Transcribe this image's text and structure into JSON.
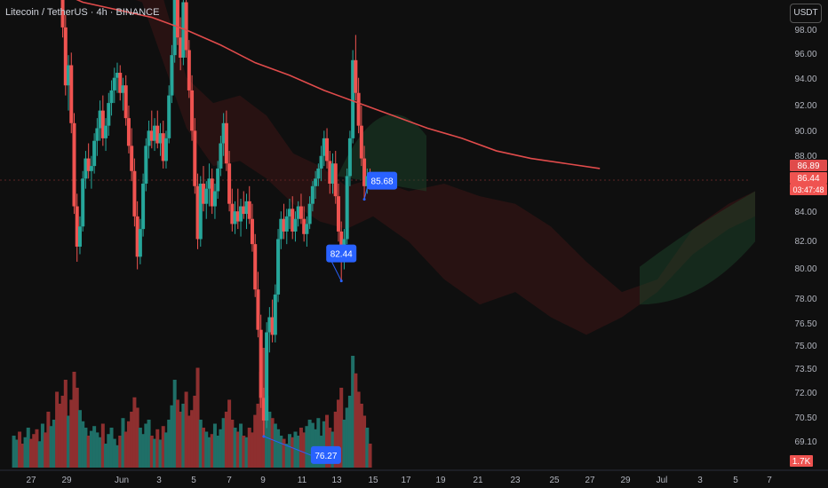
{
  "header": {
    "title": "Litecoin / TetherUS · 4h · BINANCE",
    "currency_button": "USDT"
  },
  "colors": {
    "up": "#26a69a",
    "down": "#ef5350",
    "ma": "#e04b4b",
    "label": "#2962ff",
    "bg": "#0f0f0f"
  },
  "chart_data": {
    "type": "candlestick",
    "price_axis": {
      "ticks": [
        "98.00",
        "96.00",
        "94.00",
        "92.00",
        "90.00",
        "88.00",
        "84.00",
        "82.00",
        "80.00",
        "78.00",
        "76.50",
        "75.00",
        "73.50",
        "72.00",
        "70.50",
        "69.10"
      ]
    },
    "x_axis": {
      "ticks": [
        "27",
        "29",
        "Jun",
        "3",
        "5",
        "7",
        "9",
        "11",
        "13",
        "15",
        "17",
        "19",
        "21",
        "23",
        "25",
        "27",
        "29",
        "Jul",
        "3",
        "5",
        "7"
      ]
    },
    "price_badges": [
      {
        "value": "86.89",
        "color": "#e04b4b"
      },
      {
        "value": "86.44",
        "color": "#ef5350"
      },
      {
        "value": "03:47:48",
        "color": "#ef5350"
      }
    ],
    "volume_badge": {
      "value": "1.7K",
      "color": "#ef5350"
    },
    "annotations": [
      {
        "label": "76.27",
        "price": 76.27
      },
      {
        "label": "82.44",
        "price": 82.44
      },
      {
        "label": "85.68",
        "price": 85.68
      }
    ],
    "moving_average": {
      "color": "#e04b4b",
      "points": [
        [
          26.0,
          94.3
        ],
        [
          28.0,
          94.1
        ],
        [
          30.0,
          93.5
        ],
        [
          32.0,
          93.2
        ],
        [
          34.0,
          92.9
        ],
        [
          36.0,
          92.4
        ],
        [
          38.0,
          91.8
        ],
        [
          40.0,
          91.1
        ],
        [
          42.0,
          90.6
        ],
        [
          44.0,
          90.0
        ],
        [
          46.0,
          89.5
        ],
        [
          48.0,
          89.0
        ],
        [
          50.0,
          88.5
        ],
        [
          52.0,
          88.1
        ],
        [
          54.0,
          87.6
        ],
        [
          56.0,
          87.3
        ],
        [
          58.0,
          87.1
        ],
        [
          60.0,
          86.9
        ]
      ]
    },
    "candles": {
      "x_start": 26.0,
      "step": 0.16667,
      "ohlc": [
        [
          95.2,
          96.4,
          94.8,
          96.0
        ],
        [
          96.0,
          97.1,
          95.5,
          96.7
        ],
        [
          96.7,
          97.4,
          95.9,
          96.2
        ],
        [
          96.2,
          96.9,
          95.1,
          95.6
        ],
        [
          95.6,
          96.8,
          95.2,
          96.5
        ],
        [
          96.5,
          97.6,
          96.0,
          97.2
        ],
        [
          97.2,
          97.8,
          96.4,
          96.8
        ],
        [
          96.8,
          97.3,
          95.7,
          96.0
        ],
        [
          96.0,
          96.7,
          95.1,
          95.8
        ],
        [
          95.8,
          96.9,
          95.4,
          96.6
        ],
        [
          96.6,
          97.5,
          96.2,
          97.1
        ],
        [
          97.1,
          97.6,
          96.3,
          96.5
        ],
        [
          96.5,
          97.0,
          94.2,
          94.5
        ],
        [
          94.5,
          96.0,
          94.1,
          95.7
        ],
        [
          95.7,
          97.9,
          95.5,
          97.6
        ],
        [
          97.6,
          98.3,
          96.1,
          96.3
        ],
        [
          96.3,
          96.8,
          94.0,
          94.3
        ],
        [
          94.3,
          94.9,
          92.1,
          92.5
        ],
        [
          92.5,
          93.0,
          89.8,
          90.2
        ],
        [
          90.2,
          91.4,
          89.2,
          91.0
        ],
        [
          91.0,
          91.5,
          88.3,
          88.7
        ],
        [
          88.7,
          89.1,
          85.1,
          85.4
        ],
        [
          85.4,
          85.9,
          83.2,
          83.8
        ],
        [
          83.8,
          85.0,
          83.5,
          84.6
        ],
        [
          84.6,
          86.8,
          84.4,
          86.5
        ],
        [
          86.5,
          87.6,
          86.1,
          87.3
        ],
        [
          87.3,
          87.9,
          86.5,
          86.8
        ],
        [
          86.8,
          87.4,
          86.1,
          87.0
        ],
        [
          87.0,
          88.3,
          86.7,
          88.0
        ],
        [
          88.0,
          88.9,
          87.4,
          88.5
        ],
        [
          88.5,
          89.6,
          88.0,
          89.2
        ],
        [
          89.2,
          89.8,
          87.8,
          88.1
        ],
        [
          88.1,
          88.9,
          87.6,
          88.6
        ],
        [
          88.6,
          89.9,
          88.2,
          89.5
        ],
        [
          89.5,
          90.4,
          89.0,
          90.0
        ],
        [
          90.0,
          90.9,
          89.5,
          90.5
        ],
        [
          90.5,
          91.1,
          89.9,
          90.7
        ],
        [
          90.7,
          91.0,
          89.6,
          89.9
        ],
        [
          89.9,
          90.5,
          89.2,
          90.2
        ],
        [
          90.2,
          90.6,
          88.6,
          88.9
        ],
        [
          88.9,
          89.4,
          87.5,
          87.8
        ],
        [
          87.8,
          88.5,
          86.4,
          86.8
        ],
        [
          86.8,
          87.3,
          84.6,
          85.0
        ],
        [
          85.0,
          85.6,
          82.9,
          83.4
        ],
        [
          83.4,
          84.9,
          83.1,
          84.5
        ],
        [
          84.5,
          86.7,
          84.2,
          86.3
        ],
        [
          86.3,
          88.1,
          86.0,
          87.8
        ],
        [
          87.8,
          88.8,
          87.3,
          88.4
        ],
        [
          88.4,
          89.2,
          87.7,
          88.0
        ],
        [
          88.0,
          88.9,
          87.6,
          88.6
        ],
        [
          88.6,
          89.2,
          87.7,
          87.9
        ],
        [
          87.9,
          88.7,
          87.4,
          88.3
        ],
        [
          88.3,
          88.8,
          86.9,
          87.2
        ],
        [
          87.2,
          88.4,
          86.9,
          88.1
        ],
        [
          88.1,
          90.2,
          87.9,
          89.8
        ],
        [
          89.8,
          91.8,
          89.5,
          91.4
        ],
        [
          91.4,
          93.9,
          91.1,
          93.6
        ],
        [
          93.6,
          94.2,
          91.8,
          92.1
        ],
        [
          92.1,
          92.9,
          90.8,
          91.3
        ],
        [
          91.3,
          93.8,
          91.0,
          93.5
        ],
        [
          93.5,
          94.0,
          91.3,
          91.6
        ],
        [
          91.6,
          92.0,
          89.7,
          90.0
        ],
        [
          90.0,
          90.6,
          88.0,
          88.4
        ],
        [
          88.4,
          88.9,
          85.9,
          86.2
        ],
        [
          86.2,
          86.7,
          83.7,
          84.1
        ],
        [
          84.1,
          86.6,
          83.8,
          86.3
        ],
        [
          86.3,
          87.0,
          85.2,
          85.5
        ],
        [
          85.5,
          86.4,
          84.9,
          86.1
        ],
        [
          86.1,
          87.1,
          85.4,
          86.5
        ],
        [
          86.5,
          86.9,
          85.1,
          85.4
        ],
        [
          85.4,
          86.3,
          84.9,
          86.0
        ],
        [
          86.0,
          87.2,
          85.7,
          86.9
        ],
        [
          86.9,
          88.2,
          86.6,
          87.9
        ],
        [
          87.9,
          89.1,
          87.4,
          88.7
        ],
        [
          88.7,
          89.2,
          86.8,
          87.1
        ],
        [
          87.1,
          87.6,
          85.2,
          85.5
        ],
        [
          85.5,
          86.1,
          84.4,
          84.7
        ],
        [
          84.7,
          85.6,
          84.3,
          85.2
        ],
        [
          85.2,
          86.1,
          84.5,
          84.8
        ],
        [
          84.8,
          85.7,
          84.2,
          85.4
        ],
        [
          85.4,
          86.0,
          84.9,
          85.1
        ],
        [
          85.1,
          85.9,
          84.5,
          85.6
        ],
        [
          85.6,
          86.2,
          84.7,
          84.9
        ],
        [
          84.9,
          85.5,
          83.6,
          83.9
        ],
        [
          83.9,
          84.3,
          81.8,
          82.1
        ],
        [
          82.1,
          82.8,
          80.2,
          80.5
        ],
        [
          80.5,
          81.1,
          77.4,
          77.8
        ],
        [
          77.8,
          78.2,
          76.27,
          76.9
        ],
        [
          76.9,
          80.8,
          76.6,
          80.4
        ],
        [
          80.4,
          81.4,
          79.6,
          81.0
        ],
        [
          81.0,
          81.7,
          80.0,
          80.3
        ],
        [
          80.3,
          82.3,
          80.0,
          81.9
        ],
        [
          81.9,
          84.5,
          81.6,
          84.1
        ],
        [
          84.1,
          85.2,
          83.7,
          84.9
        ],
        [
          84.9,
          85.5,
          84.1,
          84.4
        ],
        [
          84.4,
          85.3,
          83.9,
          85.0
        ],
        [
          85.0,
          85.7,
          84.5,
          85.3
        ],
        [
          85.3,
          85.8,
          84.1,
          84.4
        ],
        [
          84.4,
          85.2,
          84.0,
          84.9
        ],
        [
          84.9,
          85.6,
          84.6,
          85.4
        ],
        [
          85.4,
          85.9,
          84.7,
          84.9
        ],
        [
          84.9,
          85.4,
          84.0,
          84.3
        ],
        [
          84.3,
          85.0,
          83.8,
          84.7
        ],
        [
          84.7,
          85.8,
          84.5,
          85.5
        ],
        [
          85.5,
          86.4,
          85.2,
          86.2
        ],
        [
          86.2,
          86.8,
          85.7,
          86.5
        ],
        [
          86.5,
          87.1,
          86.2,
          86.9
        ],
        [
          86.9,
          87.8,
          86.4,
          87.4
        ],
        [
          87.4,
          88.4,
          87.0,
          88.1
        ],
        [
          88.1,
          88.5,
          86.9,
          87.2
        ],
        [
          87.2,
          87.6,
          85.9,
          86.3
        ],
        [
          86.3,
          87.5,
          85.9,
          87.1
        ],
        [
          87.1,
          87.6,
          85.5,
          85.8
        ],
        [
          85.8,
          86.3,
          84.0,
          84.4
        ],
        [
          84.4,
          84.8,
          82.44,
          83.2
        ],
        [
          83.2,
          84.5,
          82.9,
          84.1
        ],
        [
          84.1,
          86.9,
          83.9,
          86.6
        ],
        [
          86.6,
          88.4,
          86.2,
          88.1
        ],
        [
          88.1,
          91.6,
          87.9,
          91.2
        ],
        [
          91.2,
          92.2,
          89.6,
          89.9
        ],
        [
          89.9,
          90.5,
          88.3,
          88.6
        ],
        [
          88.6,
          89.4,
          87.0,
          87.3
        ],
        [
          87.3,
          87.8,
          85.68,
          86.2
        ],
        [
          86.2,
          86.9,
          85.9,
          86.6
        ],
        [
          86.6,
          86.9,
          86.1,
          86.44
        ]
      ]
    },
    "volume": [
      40,
      35,
      45,
      30,
      38,
      50,
      36,
      42,
      48,
      33,
      55,
      44,
      70,
      52,
      60,
      95,
      80,
      90,
      110,
      65,
      85,
      120,
      100,
      72,
      58,
      50,
      40,
      46,
      52,
      44,
      38,
      55,
      30,
      42,
      50,
      36,
      28,
      40,
      62,
      45,
      58,
      70,
      88,
      75,
      50,
      42,
      55,
      60,
      40,
      36,
      48,
      35,
      52,
      44,
      60,
      78,
      110,
      85,
      70,
      80,
      95,
      65,
      72,
      90,
      125,
      60,
      50,
      45,
      38,
      42,
      55,
      40,
      48,
      62,
      70,
      85,
      60,
      50,
      45,
      55,
      40,
      38,
      50,
      44,
      66,
      80,
      120,
      150,
      90,
      70,
      62,
      55,
      48,
      40,
      36,
      30,
      42,
      38,
      45,
      40,
      50,
      44,
      52,
      60,
      56,
      48,
      62,
      40,
      58,
      66,
      50,
      45,
      70,
      85,
      100,
      60,
      75,
      90,
      140,
      118,
      95,
      80,
      65,
      50,
      30
    ]
  }
}
